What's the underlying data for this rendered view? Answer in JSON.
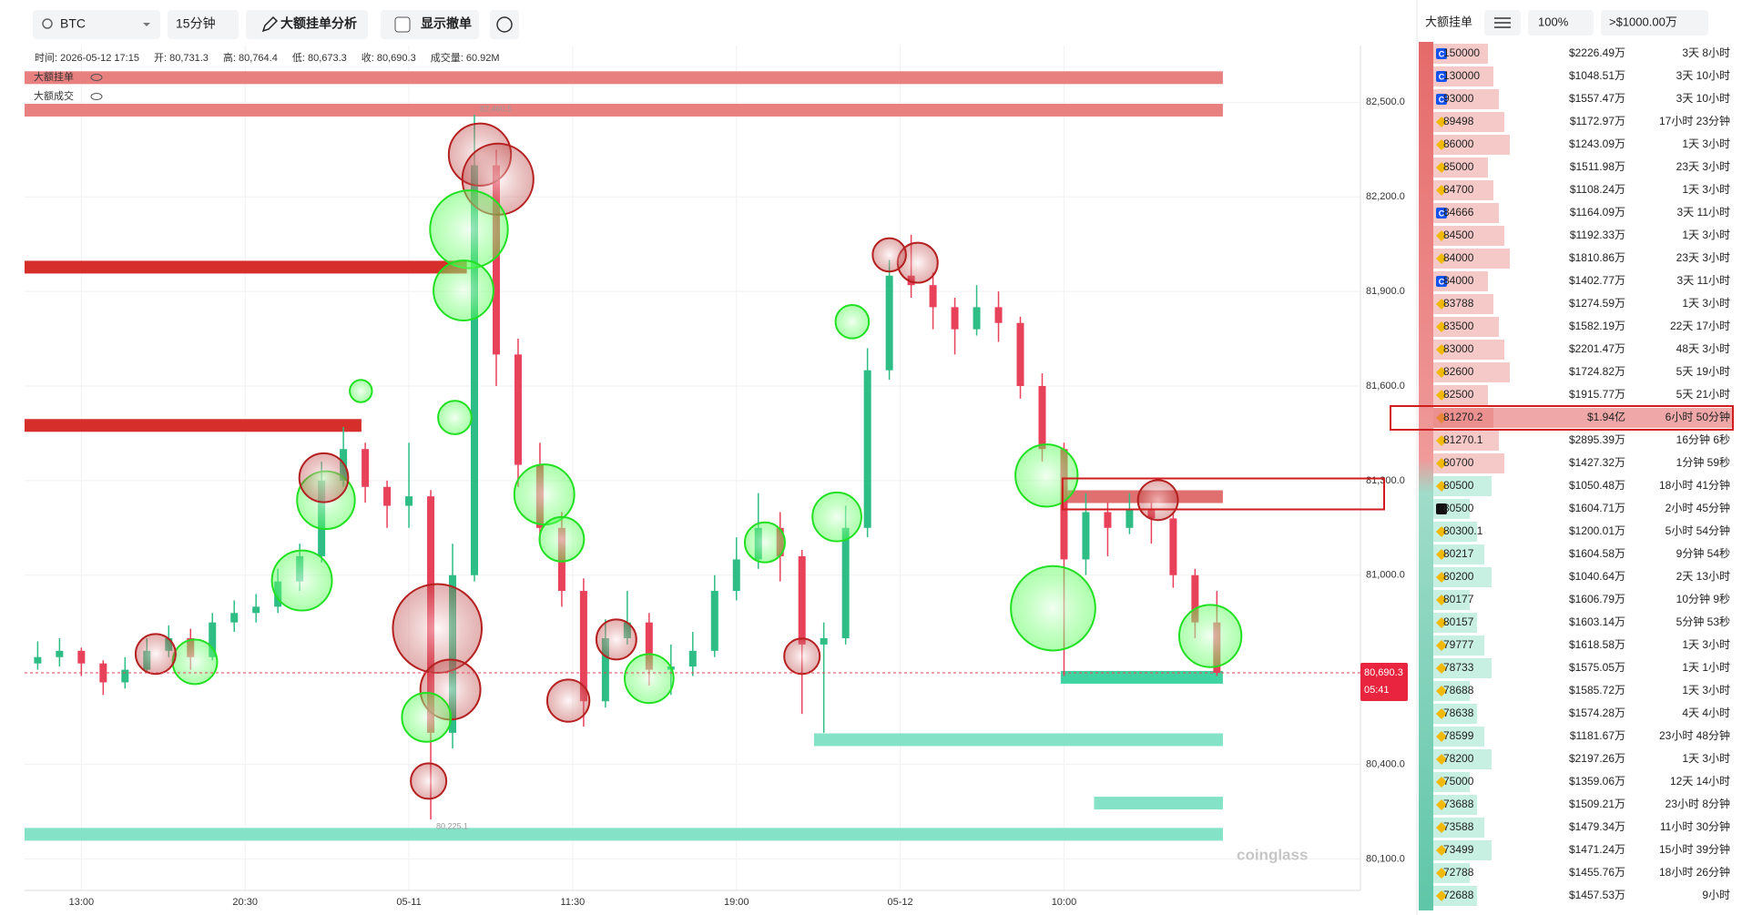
{
  "toolbar": {
    "symbol": "BTC",
    "interval": "15分钟",
    "analysis": "大额挂单分析",
    "show_cancel": "显示撤单"
  },
  "info": [
    "时间: 2026-05-12 17:15",
    "开: 80,731.3",
    "高: 80,764.4",
    "低: 80,673.3",
    "收: 80,690.3",
    "成交量: 60.92M"
  ],
  "legend": [
    "大额挂单",
    "大额成交"
  ],
  "chart": {
    "type": "candlestick",
    "ylim": [
      80000,
      82680
    ],
    "xlim": [
      -10.4,
      234.3
    ],
    "yticks": [
      {
        "value": 82500,
        "label": "82,500.0"
      },
      {
        "value": 82200,
        "label": "82,200.0"
      },
      {
        "value": 81900,
        "label": "81,900.0"
      },
      {
        "value": 81600,
        "label": "81,600.0"
      },
      {
        "value": 81300,
        "label": "81,300.0"
      },
      {
        "value": 81000,
        "label": "81,000.0"
      },
      {
        "value": 80400,
        "label": "80,400.0"
      },
      {
        "value": 80100,
        "label": "80,100.0"
      }
    ],
    "xticks": [
      {
        "value": 0,
        "label": "13:00"
      },
      {
        "value": 30,
        "label": "20:30"
      },
      {
        "value": 60,
        "label": "05-11"
      },
      {
        "value": 90,
        "label": "11:30"
      },
      {
        "value": 120,
        "label": "19:00"
      },
      {
        "value": 150,
        "label": "05-12"
      },
      {
        "value": 180,
        "label": "10:00"
      }
    ],
    "x": [
      -8,
      -4,
      0,
      4,
      8,
      12,
      16,
      20,
      24,
      28,
      32,
      36,
      40,
      44,
      48,
      52,
      56,
      60,
      64,
      68,
      72,
      76,
      80,
      84,
      88,
      92,
      96,
      100,
      104,
      108,
      112,
      116,
      120,
      124,
      128,
      132,
      136,
      140,
      144,
      148,
      152,
      156,
      160,
      164,
      168,
      172,
      176,
      180,
      184,
      188,
      192,
      196,
      200,
      204,
      208
    ],
    "candles": [
      [
        80720,
        80790,
        80700,
        80740
      ],
      [
        80740,
        80800,
        80710,
        80760
      ],
      [
        80760,
        80770,
        80680,
        80720
      ],
      [
        80720,
        80730,
        80620,
        80660
      ],
      [
        80660,
        80740,
        80640,
        80700
      ],
      [
        80700,
        80800,
        80690,
        80760
      ],
      [
        80760,
        80840,
        80740,
        80800
      ],
      [
        80800,
        80830,
        80700,
        80740
      ],
      [
        80740,
        80880,
        80730,
        80850
      ],
      [
        80850,
        80920,
        80820,
        80880
      ],
      [
        80880,
        80940,
        80850,
        80900
      ],
      [
        80900,
        81020,
        80880,
        80980
      ],
      [
        80980,
        81100,
        80950,
        81060
      ],
      [
        81060,
        81360,
        81040,
        81300
      ],
      [
        81300,
        81470,
        81280,
        81400
      ],
      [
        81400,
        81420,
        81230,
        81280
      ],
      [
        81280,
        81300,
        81150,
        81220
      ],
      [
        81220,
        81420,
        81150,
        81250
      ],
      [
        81250,
        81270,
        80225.1,
        80500
      ],
      [
        80500,
        81100,
        80450,
        81000
      ],
      [
        81000,
        82460.5,
        80980,
        82300
      ],
      [
        82300,
        82350,
        81600,
        81700
      ],
      [
        81700,
        81750,
        81280,
        81350
      ],
      [
        81350,
        81420,
        81100,
        81150
      ],
      [
        81150,
        81200,
        80900,
        80950
      ],
      [
        80950,
        80990,
        80520,
        80600
      ],
      [
        80600,
        80860,
        80580,
        80800
      ],
      [
        80800,
        80950,
        80780,
        80850
      ],
      [
        80850,
        80880,
        80650,
        80700
      ],
      [
        80700,
        80780,
        80620,
        80710
      ],
      [
        80710,
        80820,
        80680,
        80760
      ],
      [
        80760,
        81000,
        80740,
        80950
      ],
      [
        80950,
        81120,
        80920,
        81050
      ],
      [
        81050,
        81260,
        81020,
        81150
      ],
      [
        81150,
        81200,
        80980,
        81060
      ],
      [
        81060,
        81080,
        80560,
        80780
      ],
      [
        80780,
        80850,
        80500,
        80800
      ],
      [
        80800,
        81220,
        80780,
        81150
      ],
      [
        81150,
        81720,
        81120,
        81650
      ],
      [
        81650,
        82000,
        81620,
        81950
      ],
      [
        81950,
        82080,
        81880,
        81920
      ],
      [
        81920,
        81960,
        81780,
        81850
      ],
      [
        81850,
        81880,
        81700,
        81780
      ],
      [
        81780,
        81920,
        81760,
        81850
      ],
      [
        81850,
        81900,
        81740,
        81800
      ],
      [
        81800,
        81820,
        81560,
        81600
      ],
      [
        81600,
        81640,
        81360,
        81400
      ],
      [
        81400,
        81420,
        80680,
        81050
      ],
      [
        81050,
        81260,
        81000,
        81200
      ],
      [
        81200,
        81230,
        81060,
        81150
      ],
      [
        81150,
        81260,
        81130,
        81210
      ],
      [
        81210,
        81230,
        81100,
        81180
      ],
      [
        81180,
        81200,
        80960,
        81000
      ],
      [
        81000,
        81020,
        80800,
        80850
      ],
      [
        80850,
        80950,
        80680,
        80690.3
      ]
    ],
    "trades": [
      {
        "x": 73,
        "price": 82334,
        "size": 784,
        "side": "sell"
      },
      {
        "x": 76.3,
        "price": 82256,
        "size": 1024,
        "side": "sell"
      },
      {
        "x": 71,
        "price": 82097,
        "size": 1225,
        "side": "buy"
      },
      {
        "x": 70,
        "price": 81903,
        "size": 729,
        "side": "buy"
      },
      {
        "x": 65.2,
        "price": 80831,
        "size": 1600,
        "side": "sell"
      },
      {
        "x": 67.6,
        "price": 80637,
        "size": 729,
        "side": "sell"
      },
      {
        "x": 63.2,
        "price": 80549,
        "size": 484,
        "side": "buy"
      },
      {
        "x": 63.6,
        "price": 80347,
        "size": 256,
        "side": "sell"
      },
      {
        "x": 84.8,
        "price": 81256,
        "size": 729,
        "side": "buy"
      },
      {
        "x": 88,
        "price": 81114,
        "size": 400,
        "side": "buy"
      },
      {
        "x": 89.2,
        "price": 80602,
        "size": 361,
        "side": "sell"
      },
      {
        "x": 44.8,
        "price": 81238,
        "size": 676,
        "side": "buy"
      },
      {
        "x": 44.4,
        "price": 81309,
        "size": 484,
        "side": "sell"
      },
      {
        "x": 40.4,
        "price": 80983,
        "size": 729,
        "side": "buy"
      },
      {
        "x": 20.8,
        "price": 80725,
        "size": 400,
        "side": "buy"
      },
      {
        "x": 13.6,
        "price": 80750,
        "size": 324,
        "side": "sell"
      },
      {
        "x": 98,
        "price": 80796,
        "size": 324,
        "side": "sell"
      },
      {
        "x": 104,
        "price": 80672,
        "size": 484,
        "side": "buy"
      },
      {
        "x": 138.4,
        "price": 81185,
        "size": 484,
        "side": "buy"
      },
      {
        "x": 125.2,
        "price": 81104,
        "size": 324,
        "side": "buy"
      },
      {
        "x": 132,
        "price": 80743,
        "size": 256,
        "side": "sell"
      },
      {
        "x": 141.2,
        "price": 81804,
        "size": 225,
        "side": "buy"
      },
      {
        "x": 153.2,
        "price": 81991,
        "size": 324,
        "side": "sell"
      },
      {
        "x": 148,
        "price": 82016,
        "size": 225,
        "side": "sell"
      },
      {
        "x": 176.8,
        "price": 81316,
        "size": 784,
        "side": "buy"
      },
      {
        "x": 178,
        "price": 80895,
        "size": 1444,
        "side": "buy"
      },
      {
        "x": 206.8,
        "price": 80807,
        "size": 784,
        "side": "buy"
      },
      {
        "x": 197.2,
        "price": 81238,
        "size": 324,
        "side": "sell"
      },
      {
        "x": 68.4,
        "price": 81500,
        "size": 225,
        "side": "buy"
      },
      {
        "x": 51.2,
        "price": 81584,
        "size": 100,
        "side": "buy"
      }
    ],
    "walls": [
      {
        "price": 82578,
        "from": -10.4,
        "to": 209.1,
        "color": "#e98080"
      },
      {
        "price": 82475,
        "from": -10.4,
        "to": 209.1,
        "color": "#e98080"
      },
      {
        "price": 81977,
        "from": -10.4,
        "to": 70.6,
        "color": "#d62f2b"
      },
      {
        "price": 81475,
        "from": -10.4,
        "to": 51.3,
        "color": "#d62f2b"
      },
      {
        "price": 81249,
        "from": 180.4,
        "to": 209.1,
        "color": "#e07070"
      },
      {
        "price": 80676,
        "from": 179.4,
        "to": 209.1,
        "color": "#3fd3a2"
      },
      {
        "price": 80478,
        "from": 134.2,
        "to": 209.1,
        "color": "#84e3c6"
      },
      {
        "price": 80277,
        "from": 185.5,
        "to": 209.1,
        "color": "#84e3c6"
      },
      {
        "price": 80178,
        "from": -10.4,
        "to": 209.1,
        "color": "#84e3c6"
      }
    ],
    "high_label": "82,460.5",
    "low_label": "80,225.1",
    "last_price": {
      "value": 80690.3,
      "label": "80,690.3"
    },
    "countdown": "05:41",
    "watermark": "coinglass"
  },
  "orderbook": {
    "title": "大额挂单",
    "zoom": "100%",
    "filter": ">$1000.00万",
    "rows": [
      {
        "price": "150000",
        "amount": "$2226.49万",
        "age": "3天 8小时",
        "ex": "C",
        "side": "ask"
      },
      {
        "price": "130000",
        "amount": "$1048.51万",
        "age": "3天 10小时",
        "ex": "C",
        "side": "ask"
      },
      {
        "price": "93000",
        "amount": "$1557.47万",
        "age": "3天 10小时",
        "ex": "C",
        "side": "ask"
      },
      {
        "price": "89498",
        "amount": "$1172.97万",
        "age": "17小时 23分钟",
        "ex": "B",
        "side": "ask"
      },
      {
        "price": "86000",
        "amount": "$1243.09万",
        "age": "1天 3小时",
        "ex": "B",
        "side": "ask"
      },
      {
        "price": "85000",
        "amount": "$1511.98万",
        "age": "23天 3小时",
        "ex": "B",
        "side": "ask"
      },
      {
        "price": "84700",
        "amount": "$1108.24万",
        "age": "1天 3小时",
        "ex": "B",
        "side": "ask"
      },
      {
        "price": "84666",
        "amount": "$1164.09万",
        "age": "3天 11小时",
        "ex": "C",
        "side": "ask"
      },
      {
        "price": "84500",
        "amount": "$1192.33万",
        "age": "1天 3小时",
        "ex": "B",
        "side": "ask"
      },
      {
        "price": "84000",
        "amount": "$1810.86万",
        "age": "23天 3小时",
        "ex": "B",
        "side": "ask"
      },
      {
        "price": "84000",
        "amount": "$1402.77万",
        "age": "3天 11小时",
        "ex": "C",
        "side": "ask"
      },
      {
        "price": "83788",
        "amount": "$1274.59万",
        "age": "1天 3小时",
        "ex": "B",
        "side": "ask"
      },
      {
        "price": "83500",
        "amount": "$1582.19万",
        "age": "22天 17小时",
        "ex": "B",
        "side": "ask"
      },
      {
        "price": "83000",
        "amount": "$2201.47万",
        "age": "48天 3小时",
        "ex": "B",
        "side": "ask"
      },
      {
        "price": "82600",
        "amount": "$1724.82万",
        "age": "5天 19小时",
        "ex": "B",
        "side": "ask"
      },
      {
        "price": "82500",
        "amount": "$1915.77万",
        "age": "5天 21小时",
        "ex": "B",
        "side": "ask"
      },
      {
        "price": "81270.2",
        "amount": "$1.94亿",
        "age": "6小时 50分钟",
        "ex": "B",
        "side": "ask",
        "highlight": true
      },
      {
        "price": "81270.1",
        "amount": "$2895.39万",
        "age": "16分钟 6秒",
        "ex": "B",
        "side": "ask"
      },
      {
        "price": "80700",
        "amount": "$1427.32万",
        "age": "1分钟 59秒",
        "ex": "B",
        "side": "ask"
      },
      {
        "price": "80500",
        "amount": "$1050.48万",
        "age": "18小时 41分钟",
        "ex": "B",
        "side": "bid"
      },
      {
        "price": "80500",
        "amount": "$1604.71万",
        "age": "2小时 45分钟",
        "ex": "X",
        "side": "bid"
      },
      {
        "price": "80300.1",
        "amount": "$1200.01万",
        "age": "5小时 54分钟",
        "ex": "B",
        "side": "bid"
      },
      {
        "price": "80217",
        "amount": "$1604.58万",
        "age": "9分钟 54秒",
        "ex": "B",
        "side": "bid"
      },
      {
        "price": "80200",
        "amount": "$1040.64万",
        "age": "2天 13小时",
        "ex": "B",
        "side": "bid"
      },
      {
        "price": "80177",
        "amount": "$1606.79万",
        "age": "10分钟 9秒",
        "ex": "B",
        "side": "bid"
      },
      {
        "price": "80157",
        "amount": "$1603.14万",
        "age": "5分钟 53秒",
        "ex": "B",
        "side": "bid"
      },
      {
        "price": "79777",
        "amount": "$1618.58万",
        "age": "1天 3小时",
        "ex": "B",
        "side": "bid"
      },
      {
        "price": "78733",
        "amount": "$1575.05万",
        "age": "1天 1小时",
        "ex": "B",
        "side": "bid"
      },
      {
        "price": "78688",
        "amount": "$1585.72万",
        "age": "1天 3小时",
        "ex": "B",
        "side": "bid"
      },
      {
        "price": "78638",
        "amount": "$1574.28万",
        "age": "4天 4小时",
        "ex": "B",
        "side": "bid"
      },
      {
        "price": "78599",
        "amount": "$1181.67万",
        "age": "23小时 48分钟",
        "ex": "B",
        "side": "bid"
      },
      {
        "price": "78200",
        "amount": "$2197.26万",
        "age": "1天 3小时",
        "ex": "B",
        "side": "bid"
      },
      {
        "price": "75000",
        "amount": "$1359.06万",
        "age": "12天 14小时",
        "ex": "B",
        "side": "bid"
      },
      {
        "price": "73688",
        "amount": "$1509.21万",
        "age": "23小时 8分钟",
        "ex": "B",
        "side": "bid"
      },
      {
        "price": "73588",
        "amount": "$1479.34万",
        "age": "11小时 30分钟",
        "ex": "B",
        "side": "bid"
      },
      {
        "price": "73499",
        "amount": "$1471.24万",
        "age": "15小时 39分钟",
        "ex": "B",
        "side": "bid"
      },
      {
        "price": "72788",
        "amount": "$1455.76万",
        "age": "18小时 26分钟",
        "ex": "B",
        "side": "bid"
      },
      {
        "price": "72688",
        "amount": "$1457.53万",
        "age": "9小时",
        "ex": "B",
        "side": "bid"
      }
    ]
  }
}
